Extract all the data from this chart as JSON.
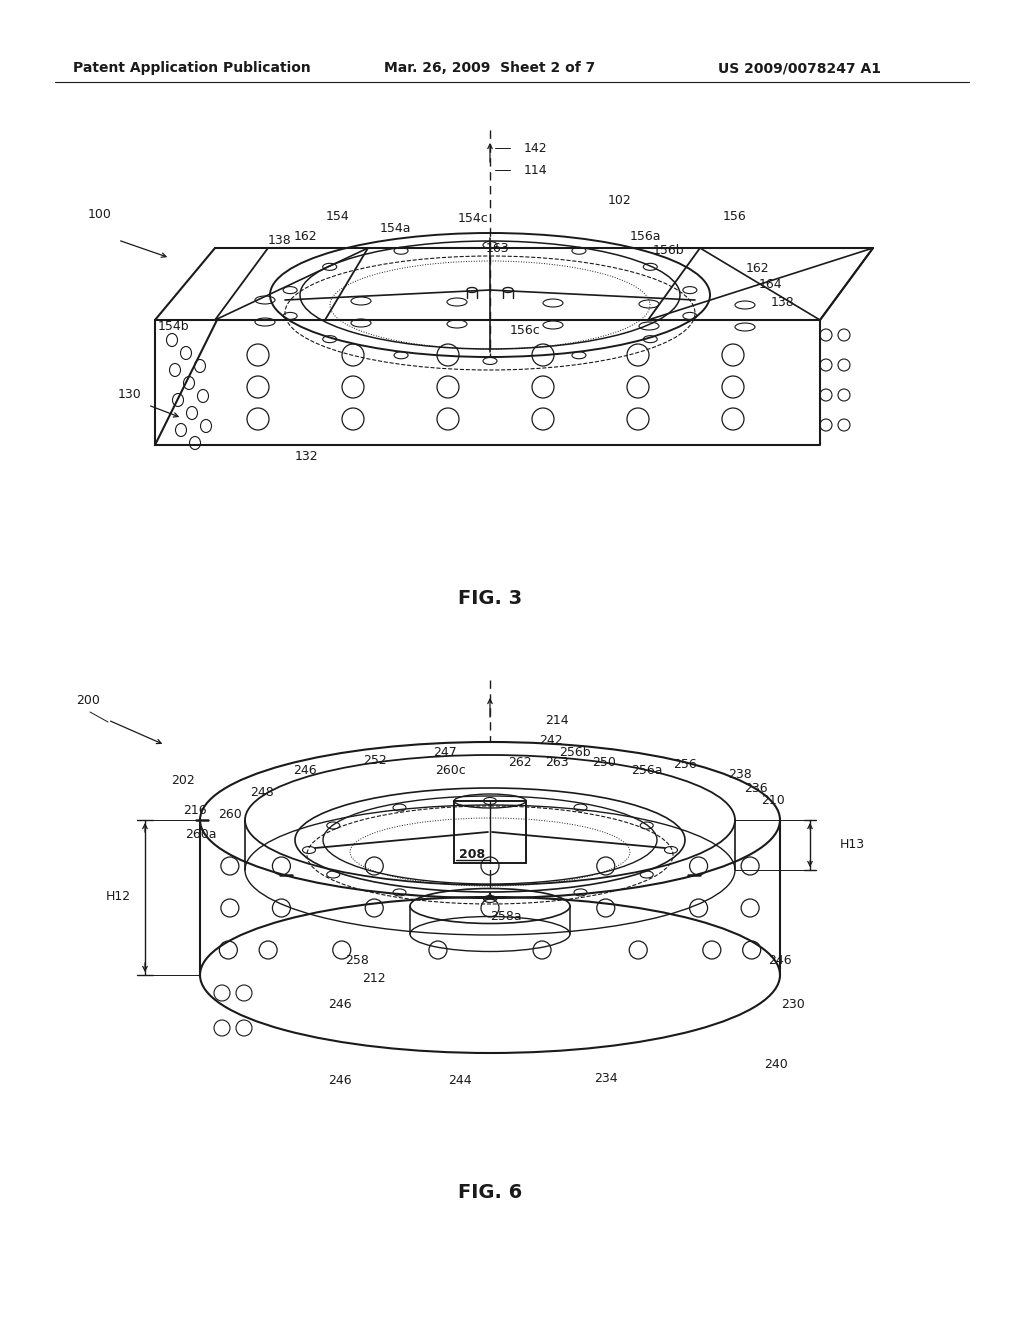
{
  "header_left": "Patent Application Publication",
  "header_center": "Mar. 26, 2009  Sheet 2 of 7",
  "header_right": "US 2009/0078247 A1",
  "fig3_label": "FIG. 3",
  "fig6_label": "FIG. 6",
  "bg": "#ffffff",
  "lc": "#1a1a1a"
}
